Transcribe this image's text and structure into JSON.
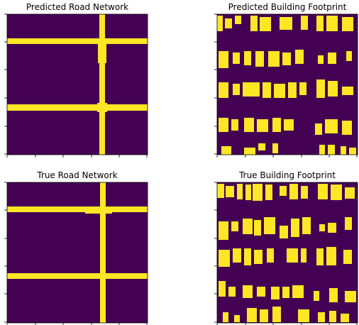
{
  "figure": {
    "colors": {
      "background": "#440154",
      "foreground": "#fde725",
      "edge": "#5ec962",
      "frame": "#000000"
    }
  },
  "chart_data": [
    {
      "type": "heatmap",
      "title": "Predicted Road Network",
      "image": "road",
      "colormap": "viridis",
      "binary_classes": [
        "background",
        "road"
      ],
      "grid": false,
      "tick_labels_shown": false
    },
    {
      "type": "heatmap",
      "title": "Predicted Building Footprint",
      "image": "buildings",
      "colormap": "viridis",
      "binary_classes": [
        "background",
        "building"
      ],
      "grid": false,
      "tick_labels_shown": false
    },
    {
      "type": "heatmap",
      "title": "True Road Network",
      "image": "road",
      "colormap": "viridis",
      "binary_classes": [
        "background",
        "road"
      ],
      "grid": false,
      "tick_labels_shown": false
    },
    {
      "type": "heatmap",
      "title": "True Building Footprint",
      "image": "buildings",
      "colormap": "viridis",
      "binary_classes": [
        "background",
        "building"
      ],
      "grid": false,
      "tick_labels_shown": false
    }
  ]
}
